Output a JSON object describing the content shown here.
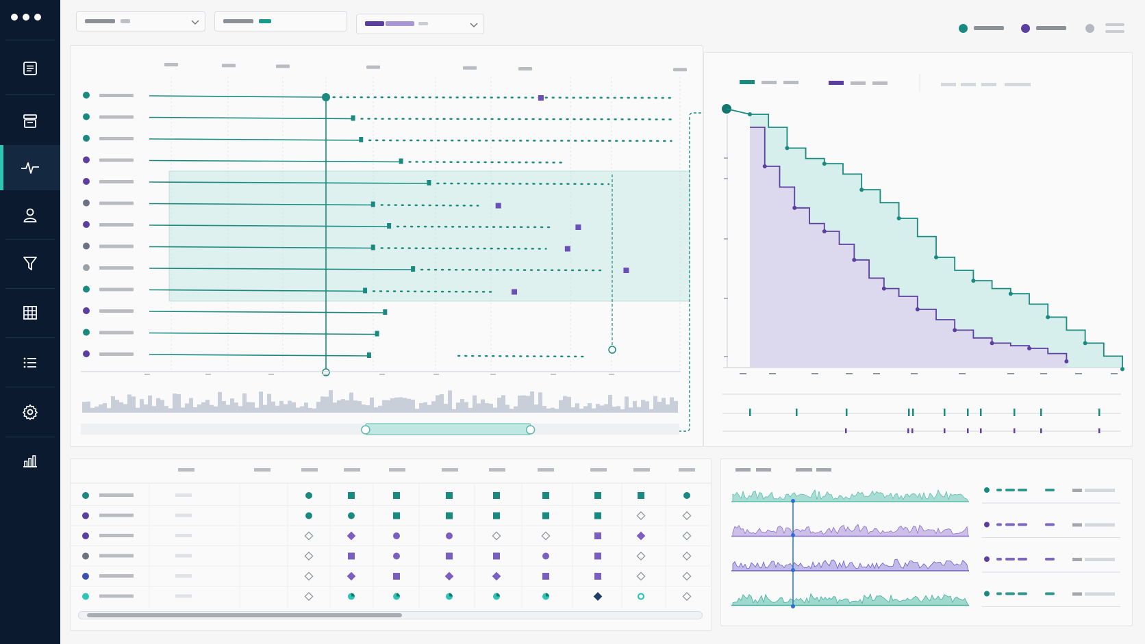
{
  "sidebar": {
    "items": [
      {
        "id": "document",
        "icon": "document-icon"
      },
      {
        "id": "inbox",
        "icon": "inbox-icon"
      },
      {
        "id": "activity",
        "icon": "activity-pulse-icon",
        "active": true
      },
      {
        "id": "user",
        "icon": "user-icon"
      },
      {
        "id": "filter",
        "icon": "funnel-icon"
      },
      {
        "id": "table",
        "icon": "table-grid-icon"
      },
      {
        "id": "list",
        "icon": "list-icon"
      },
      {
        "id": "settings",
        "icon": "gear-icon"
      },
      {
        "id": "analytics",
        "icon": "bar-chart-icon"
      }
    ]
  },
  "colors": {
    "sidebar_bg": "#0c1a2f",
    "accent_teal": "#1a8a80",
    "light_teal": "#bfe8e2",
    "accent_purple": "#5b3fa0",
    "light_purple": "#ddd5ee",
    "gray": "#9aa0a8",
    "active_indicator": "#2ec4b6"
  },
  "legend": {
    "entries": [
      {
        "color": "#1a8a80"
      },
      {
        "color": "#5b3fa0"
      },
      {
        "color": "#b5b9bf"
      }
    ]
  },
  "timeline": {
    "rows": [
      {
        "dot": "#1a8a80",
        "bar_end": 0.44,
        "dotted_end": 1.0,
        "marker": 0.73
      },
      {
        "dot": "#1a8a80",
        "bar_end": 0.51,
        "dotted_end": 1.0
      },
      {
        "dot": "#1a8a80",
        "bar_end": 0.53,
        "dotted_end": 1.0
      },
      {
        "dot": "#5b3fa0",
        "bar_end": 0.63,
        "dotted_end": 0.79
      },
      {
        "dot": "#5b3fa0",
        "bar_end": 0.7,
        "dotted_end": 0.88
      },
      {
        "dot": "#6b7280",
        "bar_end": 0.56,
        "dotted_end": 0.63,
        "marker": 0.65
      },
      {
        "dot": "#5b3fa0",
        "bar_end": 0.6,
        "dotted_end": 0.77,
        "marker": 0.8
      },
      {
        "dot": "#6b7280",
        "bar_end": 0.56,
        "dotted_end": 0.76,
        "marker": 0.78
      },
      {
        "dot": "#9aa0a8",
        "bar_end": 0.66,
        "dotted_end": 0.87,
        "marker": 0.89
      },
      {
        "dot": "#1a8a80",
        "bar_end": 0.54,
        "dotted_end": 0.66,
        "marker": 0.68
      },
      {
        "dot": "#5b3fa0",
        "bar_end": 0.59
      },
      {
        "dot": "#1a8a80",
        "bar_end": 0.57
      },
      {
        "dot": "#5b3fa0",
        "bar_end": 0.55,
        "dotted_start": 0.58,
        "dotted_end": 0.84
      }
    ],
    "scrub_range": [
      0.35,
      0.63
    ]
  },
  "chart_data": [
    {
      "type": "area",
      "series": [
        {
          "color": "#1a8a80",
          "x": [
            0,
            0.05,
            0.1,
            0.15,
            0.2,
            0.25,
            0.3,
            0.35,
            0.4,
            0.45,
            0.5,
            0.55,
            0.6,
            0.65,
            0.7,
            0.75,
            0.8,
            0.85,
            0.9,
            0.95,
            1.0
          ],
          "y": [
            1.0,
            0.95,
            0.87,
            0.83,
            0.81,
            0.77,
            0.71,
            0.66,
            0.6,
            0.53,
            0.45,
            0.4,
            0.36,
            0.33,
            0.31,
            0.27,
            0.22,
            0.17,
            0.12,
            0.07,
            0.02
          ]
        },
        {
          "color": "#5b3fa0",
          "x": [
            0,
            0.04,
            0.08,
            0.12,
            0.16,
            0.2,
            0.24,
            0.28,
            0.32,
            0.36,
            0.4,
            0.45,
            0.5,
            0.55,
            0.6,
            0.65,
            0.7,
            0.75,
            0.8,
            0.85
          ],
          "y": [
            0.95,
            0.8,
            0.72,
            0.64,
            0.58,
            0.55,
            0.5,
            0.44,
            0.37,
            0.33,
            0.3,
            0.25,
            0.21,
            0.17,
            0.14,
            0.12,
            0.11,
            0.1,
            0.08,
            0.05
          ]
        }
      ]
    }
  ],
  "matrix": {
    "rows": [
      {
        "dot": "#1a8a80",
        "cells": [
          "teal-circle",
          "teal-square",
          "teal-square",
          "teal-square",
          "teal-square",
          "teal-square",
          "teal-square",
          "teal-square",
          "teal-circle"
        ]
      },
      {
        "dot": "#5b3fa0",
        "cells": [
          "teal-circle",
          "teal-circle",
          "teal-square",
          "teal-square",
          "teal-square",
          "teal-square",
          "teal-square",
          "outline-diamond",
          "outline-diamond"
        ]
      },
      {
        "dot": "#5b3fa0",
        "cells": [
          "outline-diamond",
          "purple-diamond",
          "purple-circle",
          "purple-circle",
          "outline-diamond",
          "outline-diamond",
          "purple-square",
          "purple-diamond",
          "outline-diamond"
        ]
      },
      {
        "dot": "#6b7280",
        "cells": [
          "outline-diamond",
          "purple-square",
          "purple-circle",
          "purple-square",
          "purple-square",
          "purple-circle",
          "purple-square",
          "outline-diamond",
          "outline-diamond"
        ]
      },
      {
        "dot": "#3b4fb0",
        "cells": [
          "outline-diamond",
          "purple-diamond",
          "purple-square",
          "purple-diamond",
          "purple-diamond",
          "purple-square",
          "purple-square",
          "outline-diamond",
          "outline-diamond"
        ]
      },
      {
        "dot": "#2ec4b6",
        "cells": [
          "outline-diamond",
          "teal-pie",
          "teal-pie",
          "teal-pie",
          "teal-pie",
          "teal-pie",
          "navy-diamond",
          "teal-ring",
          "outline-diamond"
        ]
      }
    ]
  },
  "sparks": [
    {
      "color": "#58bfae",
      "fill": "#a9ddd4"
    },
    {
      "color": "#8a6fc8",
      "fill": "#cdbfe8"
    },
    {
      "color": "#6a5cc8",
      "fill": "#c2bbe8"
    },
    {
      "color": "#3fb2a0",
      "fill": "#9fd8cc"
    }
  ]
}
